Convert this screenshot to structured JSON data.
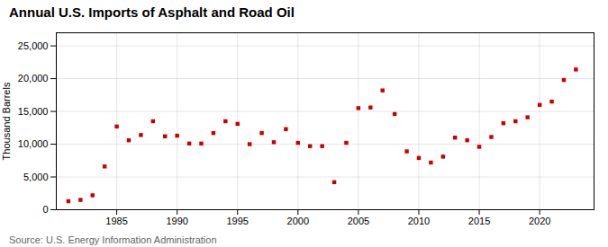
{
  "chart_data": {
    "type": "scatter",
    "title": "Annual U.S. Imports of Asphalt and Road Oil",
    "ylabel": "Thousand Barrels",
    "source": "Source: U.S. Energy Information Administration",
    "x": [
      1981,
      1982,
      1983,
      1984,
      1985,
      1986,
      1987,
      1988,
      1989,
      1990,
      1991,
      1992,
      1993,
      1994,
      1995,
      1996,
      1997,
      1998,
      1999,
      2000,
      2001,
      2002,
      2003,
      2004,
      2005,
      2006,
      2007,
      2008,
      2009,
      2010,
      2011,
      2012,
      2013,
      2014,
      2015,
      2016,
      2017,
      2018,
      2019,
      2020,
      2021,
      2022,
      2023
    ],
    "values": [
      1300,
      1500,
      2200,
      6600,
      12700,
      10600,
      11400,
      13500,
      11200,
      11300,
      10100,
      10100,
      11700,
      13500,
      13100,
      10000,
      11700,
      10300,
      12300,
      10200,
      9700,
      9700,
      4200,
      10200,
      15500,
      15600,
      18200,
      14600,
      8900,
      7900,
      7200,
      8100,
      11000,
      10600,
      9600,
      11100,
      13200,
      13500,
      14100,
      16000,
      16500,
      19800,
      21400
    ],
    "color": "#cc0000",
    "marker": "square",
    "xlim": [
      1980,
      2024.5
    ],
    "ylim": [
      0,
      27000
    ],
    "xticks": [
      1985,
      1990,
      1995,
      2000,
      2005,
      2010,
      2015,
      2020
    ],
    "yticks": [
      0,
      {
        "value": 5000,
        "label": "5,000"
      },
      {
        "value": 10000,
        "label": "10,000"
      },
      {
        "value": 15000,
        "label": "15,000"
      },
      {
        "value": 20000,
        "label": "20,000"
      },
      {
        "value": 25000,
        "label": "25,000"
      }
    ],
    "grid": true
  }
}
